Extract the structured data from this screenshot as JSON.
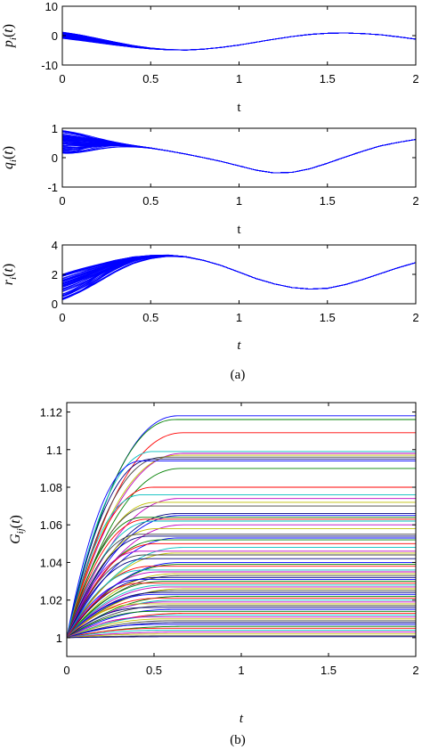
{
  "chart_data": [
    {
      "id": "p",
      "type": "line",
      "ylabel": "p_i(t)",
      "ylabel_parts": [
        "p",
        "i",
        "(",
        "t",
        ")"
      ],
      "xlabel": "t",
      "xlabel_italic": false,
      "xlim": [
        0,
        2
      ],
      "ylim": [
        -10,
        10
      ],
      "xticks": [
        0,
        0.5,
        1,
        1.5,
        2
      ],
      "xtick_labels": [
        "0",
        "0.5",
        "1",
        "1.5",
        "2"
      ],
      "yticks": [
        -10,
        0,
        10
      ],
      "ytick_labels": [
        "-10",
        "0",
        "10"
      ],
      "color": "#0000ff",
      "trajectories": 60,
      "consensus_curve": {
        "x": [
          0,
          0.1,
          0.2,
          0.3,
          0.4,
          0.5,
          0.6,
          0.7,
          0.8,
          0.9,
          1.0,
          1.1,
          1.2,
          1.3,
          1.4,
          1.5,
          1.6,
          1.7,
          1.8,
          1.9,
          2.0
        ],
        "y": [
          0,
          -0.8,
          -1.8,
          -2.8,
          -3.7,
          -4.4,
          -4.8,
          -4.9,
          -4.6,
          -4.0,
          -3.2,
          -2.2,
          -1.2,
          -0.3,
          0.4,
          0.8,
          0.9,
          0.7,
          0.3,
          -0.4,
          -1.2
        ]
      },
      "initial_spread": [
        -1.0,
        1.2
      ],
      "convergence_time": 0.7
    },
    {
      "id": "q",
      "type": "line",
      "ylabel": "q_i(t)",
      "ylabel_parts": [
        "q",
        "i",
        "(",
        "t",
        ")"
      ],
      "xlabel": "t",
      "xlabel_italic": false,
      "xlim": [
        0,
        2
      ],
      "ylim": [
        -1,
        1
      ],
      "xticks": [
        0,
        0.5,
        1,
        1.5,
        2
      ],
      "xtick_labels": [
        "0",
        "0.5",
        "1",
        "1.5",
        "2"
      ],
      "yticks": [
        -1,
        0,
        1
      ],
      "ytick_labels": [
        "-1",
        "0",
        "1"
      ],
      "color": "#0000ff",
      "trajectories": 60,
      "consensus_curve": {
        "x": [
          0,
          0.1,
          0.2,
          0.3,
          0.4,
          0.5,
          0.6,
          0.7,
          0.8,
          0.9,
          1.0,
          1.1,
          1.2,
          1.3,
          1.4,
          1.5,
          1.6,
          1.7,
          1.8,
          1.9,
          2.0
        ],
        "y": [
          0.72,
          0.65,
          0.57,
          0.49,
          0.41,
          0.33,
          0.23,
          0.12,
          0.0,
          -0.13,
          -0.28,
          -0.43,
          -0.52,
          -0.5,
          -0.38,
          -0.19,
          0.02,
          0.22,
          0.4,
          0.52,
          0.62
        ]
      },
      "initial_spread": [
        0.1,
        1.0
      ],
      "convergence_time": 0.5
    },
    {
      "id": "r",
      "type": "line",
      "ylabel": "r_i(t)",
      "ylabel_parts": [
        "r",
        "i",
        "(",
        "t",
        ")"
      ],
      "xlabel": "t",
      "xlabel_italic": true,
      "xlim": [
        0,
        2
      ],
      "ylim": [
        0,
        4
      ],
      "xticks": [
        0,
        0.5,
        1,
        1.5,
        2
      ],
      "xtick_labels": [
        "0",
        "0.5",
        "1",
        "1.5",
        "2"
      ],
      "yticks": [
        0,
        2,
        4
      ],
      "ytick_labels": [
        "0",
        "2",
        "4"
      ],
      "color": "#0000ff",
      "trajectories": 60,
      "consensus_curve": {
        "x": [
          0,
          0.1,
          0.2,
          0.3,
          0.4,
          0.5,
          0.6,
          0.7,
          0.8,
          0.9,
          1.0,
          1.1,
          1.2,
          1.3,
          1.4,
          1.5,
          1.6,
          1.7,
          1.8,
          1.9,
          2.0
        ],
        "y": [
          1.6,
          2.0,
          2.4,
          2.8,
          3.1,
          3.25,
          3.3,
          3.2,
          2.95,
          2.6,
          2.15,
          1.7,
          1.35,
          1.1,
          1.0,
          1.05,
          1.3,
          1.65,
          2.05,
          2.45,
          2.8
        ]
      },
      "initial_spread": [
        0.2,
        2.0
      ],
      "convergence_time": 0.65
    },
    {
      "id": "G",
      "type": "line",
      "ylabel": "G_ij(t)",
      "ylabel_parts": [
        "G",
        "ij",
        "(",
        "t",
        ")"
      ],
      "xlabel": "t",
      "xlabel_italic": true,
      "xlim": [
        0,
        2
      ],
      "ylim": [
        0.99,
        1.125
      ],
      "xticks": [
        0,
        0.5,
        1,
        1.5,
        2
      ],
      "xtick_labels": [
        "0",
        "0.5",
        "1",
        "1.5",
        "2"
      ],
      "yticks": [
        1,
        1.02,
        1.04,
        1.06,
        1.08,
        1.1,
        1.12
      ],
      "ytick_labels": [
        "1",
        "1.02",
        "1.04",
        "1.06",
        "1.08",
        "1.1",
        "1.12"
      ],
      "palette": [
        "#0000ff",
        "#008000",
        "#ff0000",
        "#00bfbf",
        "#bf00bf",
        "#bfbf00",
        "#404040",
        "#000080"
      ],
      "series_start": 1.0,
      "final_values": [
        1.118,
        1.116,
        1.109,
        1.099,
        1.098,
        1.097,
        1.096,
        1.095,
        1.094,
        1.09,
        1.08,
        1.076,
        1.074,
        1.072,
        1.07,
        1.066,
        1.065,
        1.064,
        1.063,
        1.062,
        1.06,
        1.058,
        1.055,
        1.054,
        1.053,
        1.052,
        1.05,
        1.048,
        1.046,
        1.045,
        1.044,
        1.042,
        1.04,
        1.039,
        1.038,
        1.036,
        1.035,
        1.034,
        1.033,
        1.032,
        1.031,
        1.03,
        1.029,
        1.028,
        1.027,
        1.026,
        1.025,
        1.024,
        1.023,
        1.022,
        1.021,
        1.02,
        1.019,
        1.018,
        1.017,
        1.016,
        1.015,
        1.014,
        1.013,
        1.012,
        1.011,
        1.01,
        1.009,
        1.008,
        1.007,
        1.006,
        1.005,
        1.004,
        1.003,
        1.002,
        1.001,
        1.0005
      ],
      "rise_time": 0.55
    }
  ],
  "captions": {
    "a": "(a)",
    "b": "(b)"
  }
}
